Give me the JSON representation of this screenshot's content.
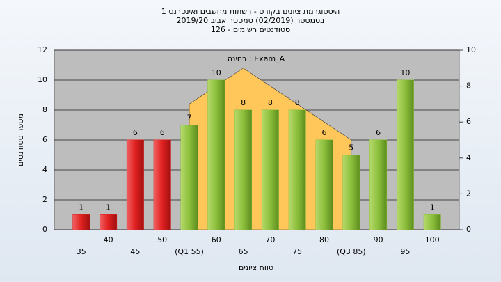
{
  "chart_data": {
    "type": "bar",
    "title": [
      "היסטוגרמת ציונים בקורס - רשתות מחשבים ואינטרנט 1",
      "בסמסטר (02/2019)  סמסטר אביב 2019/20",
      "סטודנטים רשומים - 126"
    ],
    "annotation": "בחינה : Exam_A",
    "x_label": "טווח ציונים",
    "y_label": "מספר סטודנטים",
    "categories": [
      "35",
      "40",
      "45",
      "50",
      "(Q1 55)",
      "60",
      "65",
      "70",
      "75",
      "80",
      "(Q3 85)",
      "90",
      "95",
      "100"
    ],
    "series": [
      {
        "type": "bar",
        "colors": [
          "#e02020",
          "#e02020",
          "#e02020",
          "#e02020",
          "#8cbf3c",
          "#8cbf3c",
          "#8cbf3c",
          "#8cbf3c",
          "#8cbf3c",
          "#8cbf3c",
          "#8cbf3c",
          "#8cbf3c",
          "#8cbf3c",
          "#8cbf3c"
        ],
        "values": [
          1,
          1,
          6,
          6,
          7,
          10,
          8,
          8,
          8,
          6,
          5,
          6,
          10,
          1
        ]
      },
      {
        "type": "area",
        "axis": "y2",
        "color": "#ffc65a",
        "values": [
          null,
          null,
          null,
          null,
          7,
          8,
          9,
          8,
          7,
          6,
          5,
          null,
          null,
          null
        ]
      }
    ],
    "ylim": [
      0,
      12
    ],
    "yticks": [
      0,
      2,
      4,
      6,
      8,
      10,
      12
    ],
    "y2lim": [
      0,
      10
    ],
    "y2ticks": [
      0,
      2,
      4,
      6,
      8,
      10
    ],
    "grid": true
  }
}
